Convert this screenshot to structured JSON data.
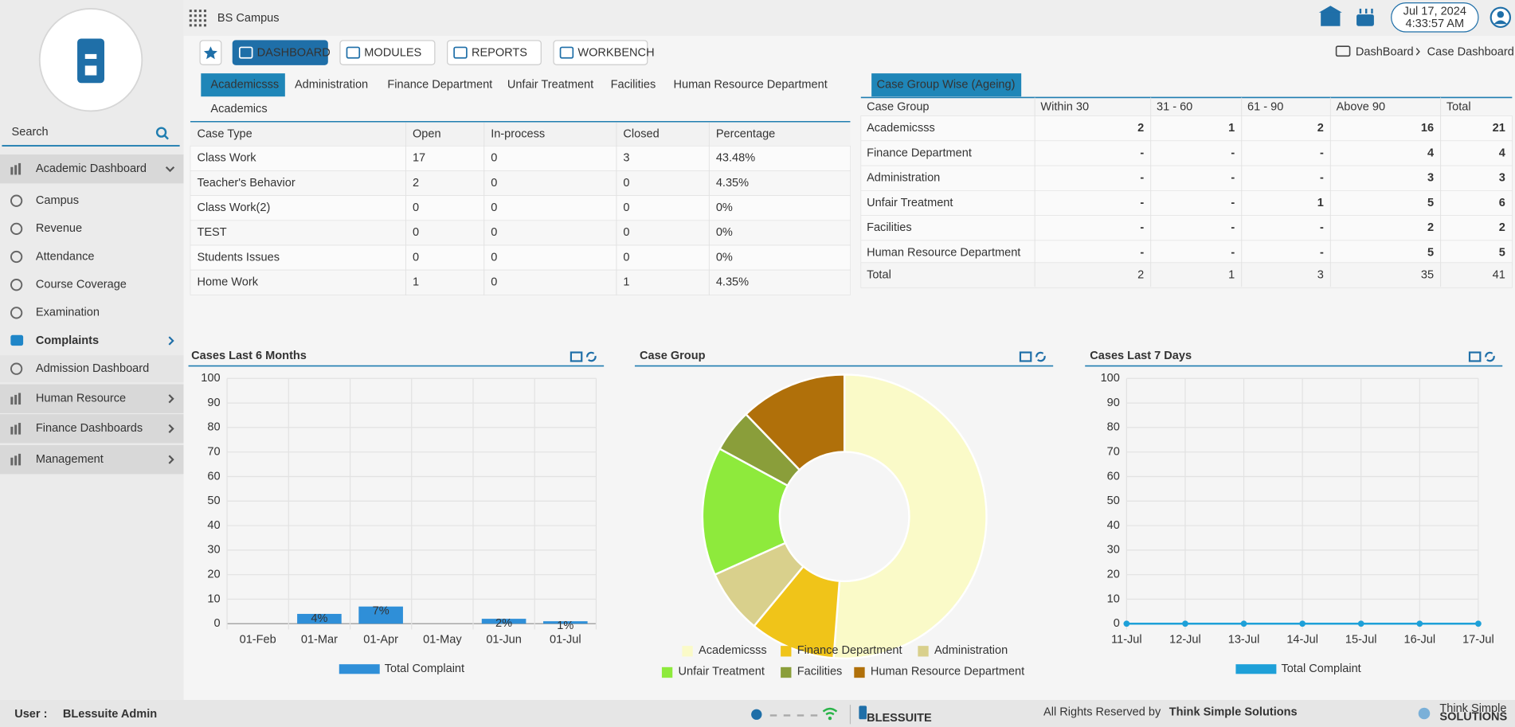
{
  "header": {
    "title": "BS Campus",
    "date": "Jul 17, 2024",
    "time": "4:33:57 AM"
  },
  "nav": {
    "buttons": [
      "DASHBOARD",
      "MODULES",
      "REPORTS",
      "WORKBENCH"
    ],
    "breadcrumb": [
      "DashBoard",
      "Case Dashboard"
    ]
  },
  "sidebar": {
    "search": "Search",
    "items": [
      {
        "label": "Academic Dashboard",
        "style": "group",
        "arrow": "down"
      },
      {
        "label": "Campus",
        "style": "sub"
      },
      {
        "label": "Revenue",
        "style": "sub"
      },
      {
        "label": "Attendance",
        "style": "sub"
      },
      {
        "label": "Course Coverage",
        "style": "sub"
      },
      {
        "label": "Examination",
        "style": "sub"
      },
      {
        "label": "Complaints",
        "style": "active",
        "arrow": "right"
      },
      {
        "label": "Admission Dashboard",
        "style": "plain"
      },
      {
        "label": "Human Resource",
        "style": "group",
        "arrow": "right"
      },
      {
        "label": "Finance Dashboards",
        "style": "group",
        "arrow": "right"
      },
      {
        "label": "Management",
        "style": "group",
        "arrow": "right"
      }
    ]
  },
  "case_type": {
    "tabs": [
      "Academicsss",
      "Administration",
      "Finance Department",
      "Unfair Treatment",
      "Facilities",
      "Human Resource Department",
      "Academics"
    ],
    "columns": [
      "Case Type",
      "Open",
      "In-process",
      "Closed",
      "Percentage"
    ],
    "rows": [
      [
        "Class Work",
        17,
        0,
        3,
        "43.48%"
      ],
      [
        "Teacher's Behavior",
        2,
        0,
        0,
        "4.35%"
      ],
      [
        "Class Work(2)",
        0,
        0,
        0,
        "0%"
      ],
      [
        "TEST",
        0,
        0,
        0,
        "0%"
      ],
      [
        "Students Issues",
        0,
        0,
        0,
        "0%"
      ],
      [
        "Home Work",
        1,
        0,
        1,
        "4.35%"
      ]
    ]
  },
  "ageing": {
    "tab": "Case Group Wise (Ageing)",
    "columns": [
      "Case Group",
      "Within 30",
      "31 - 60",
      "61 - 90",
      "Above 90",
      "Total"
    ],
    "rows": [
      [
        "Academicsss",
        2,
        1,
        2,
        16,
        21
      ],
      [
        "Finance Department",
        "-",
        "-",
        "-",
        4,
        4
      ],
      [
        "Administration",
        "-",
        "-",
        "-",
        3,
        3
      ],
      [
        "Unfair Treatment",
        "-",
        "-",
        1,
        5,
        6
      ],
      [
        "Facilities",
        "-",
        "-",
        "-",
        2,
        2
      ],
      [
        "Human Resource Department",
        "-",
        "-",
        "-",
        5,
        5
      ]
    ],
    "total": [
      "Total",
      2,
      1,
      3,
      35,
      41
    ]
  },
  "chart_data": [
    {
      "type": "bar",
      "title": "Cases Last 6 Months",
      "categories": [
        "01-Feb",
        "01-Mar",
        "01-Apr",
        "01-May",
        "01-Jun",
        "01-Jul"
      ],
      "series": [
        {
          "name": "Total Complaint",
          "color": "#2f8fd8",
          "values": [
            0,
            4,
            7,
            0,
            2,
            1
          ],
          "value_labels": [
            null,
            "4%",
            "7%",
            null,
            "2%",
            "1%"
          ]
        }
      ],
      "ylim": [
        0,
        100
      ],
      "yticks": [
        0,
        10,
        20,
        30,
        40,
        50,
        60,
        70,
        80,
        90,
        100
      ],
      "grid": true
    },
    {
      "type": "pie",
      "title": "Case Group",
      "categories": [
        "Academicsss",
        "Finance Department",
        "Administration",
        "Unfair Treatment",
        "Facilities",
        "Human Resource Department"
      ],
      "values": [
        21,
        4,
        3,
        6,
        2,
        5
      ],
      "colors": [
        "#fafac8",
        "#f0c419",
        "#d9d08c",
        "#8eea3c",
        "#8a9e3a",
        "#b0700a"
      ]
    },
    {
      "type": "line",
      "title": "Cases Last 7 Days",
      "categories": [
        "11-Jul",
        "12-Jul",
        "13-Jul",
        "14-Jul",
        "15-Jul",
        "16-Jul",
        "17-Jul"
      ],
      "series": [
        {
          "name": "Total Complaint",
          "color": "#1ea0d8",
          "values": [
            0,
            0,
            0,
            0,
            0,
            0,
            0
          ]
        }
      ],
      "ylim": [
        0,
        100
      ],
      "yticks": [
        0,
        10,
        20,
        30,
        40,
        50,
        60,
        70,
        80,
        90,
        100
      ],
      "grid": true
    }
  ],
  "footer": {
    "user_label": "User :",
    "user": "BLessuite Admin",
    "brand": "BLESSUITE",
    "rights": "All Rights Reserved by",
    "company": "Think Simple Solutions",
    "logo_top": "Think Simple",
    "logo_bottom": "SOLUTIONS"
  }
}
